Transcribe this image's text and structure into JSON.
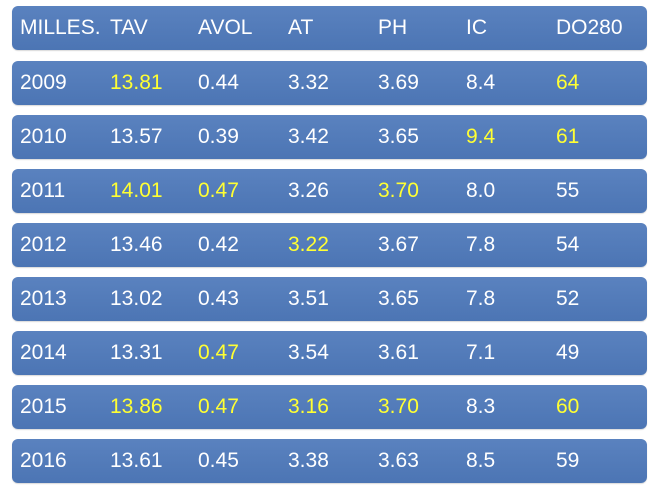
{
  "header": [
    "MILLES.",
    "TAV",
    "AVOL",
    "AT",
    "PH",
    "IC",
    "DO280"
  ],
  "rows": [
    {
      "cells": [
        "2009",
        "13.81",
        "0.44",
        "3.32",
        "3.69",
        "8.4",
        "64"
      ],
      "highlight": [
        1,
        6
      ]
    },
    {
      "cells": [
        "2010",
        "13.57",
        "0.39",
        "3.42",
        "3.65",
        "9.4",
        "61"
      ],
      "highlight": [
        5,
        6
      ]
    },
    {
      "cells": [
        "2011",
        "14.01",
        "0.47",
        "3.26",
        "3.70",
        "8.0",
        "55"
      ],
      "highlight": [
        1,
        2,
        4
      ]
    },
    {
      "cells": [
        "2012",
        "13.46",
        "0.42",
        "3.22",
        "3.67",
        "7.8",
        "54"
      ],
      "highlight": [
        3
      ]
    },
    {
      "cells": [
        "2013",
        "13.02",
        "0.43",
        "3.51",
        "3.65",
        "7.8",
        "52"
      ],
      "highlight": []
    },
    {
      "cells": [
        "2014",
        "13.31",
        "0.47",
        "3.54",
        "3.61",
        "7.1",
        "49"
      ],
      "highlight": [
        2
      ]
    },
    {
      "cells": [
        "2015",
        "13.86",
        "0.47",
        "3.16",
        "3.70",
        "8.3",
        "60"
      ],
      "highlight": [
        1,
        2,
        3,
        4,
        6
      ]
    },
    {
      "cells": [
        "2016",
        "13.61",
        "0.45",
        "3.38",
        "3.63",
        "8.5",
        "59"
      ],
      "highlight": []
    }
  ],
  "colors": {
    "row_bg": "#4f78b8",
    "text": "#ffffff",
    "highlight": "#ffff33"
  }
}
